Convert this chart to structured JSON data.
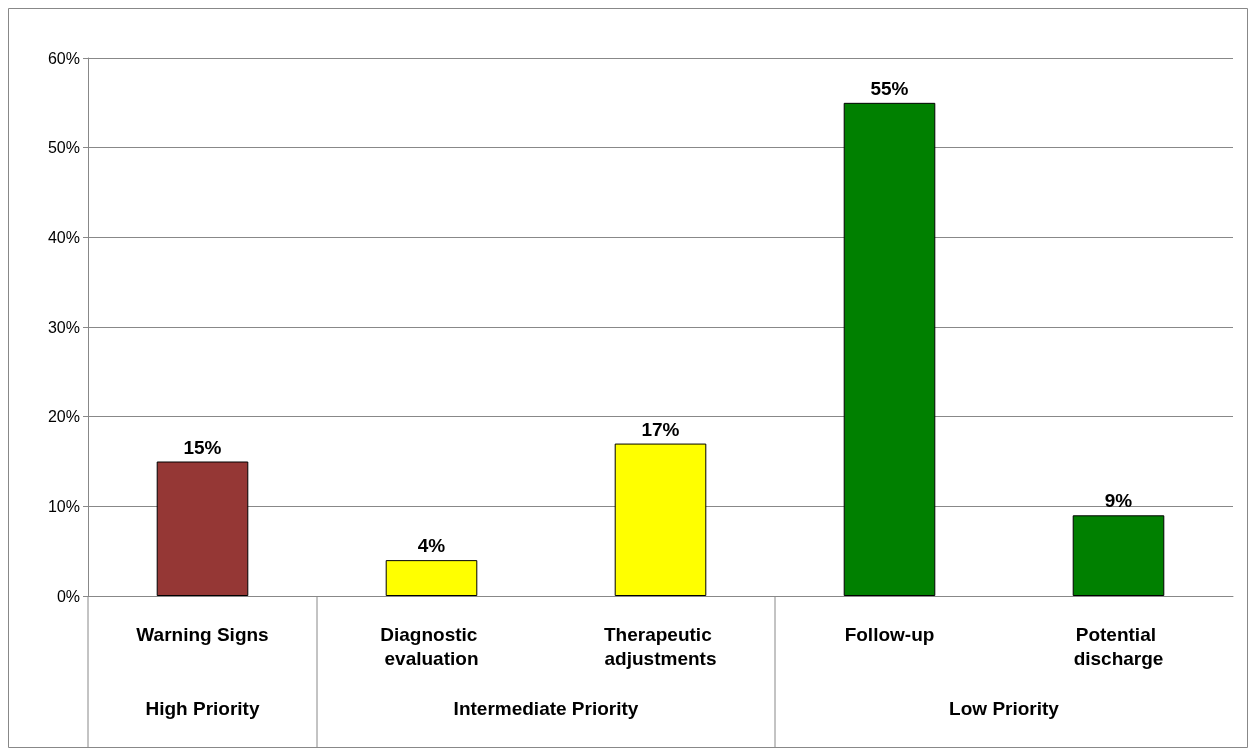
{
  "chart_data": {
    "type": "bar",
    "categories": [
      "Warning Signs",
      "Diagnostic evaluation",
      "Therapeutic adjustments",
      "Follow-up",
      "Potential discharge"
    ],
    "values": [
      15,
      4,
      17,
      55,
      9
    ],
    "colors": [
      "#953735",
      "#ffff00",
      "#ffff00",
      "#008000",
      "#008000"
    ],
    "value_labels": [
      "15%",
      "4%",
      "17%",
      "55%",
      "9%"
    ],
    "ylim": [
      0,
      60
    ],
    "yticks": [
      {
        "value": 0,
        "label": "0%"
      },
      {
        "value": 10,
        "label": "10%"
      },
      {
        "value": 20,
        "label": "20%"
      },
      {
        "value": 30,
        "label": "30%"
      },
      {
        "value": 40,
        "label": "40%"
      },
      {
        "value": 50,
        "label": "50%"
      },
      {
        "value": 60,
        "label": "60%"
      }
    ],
    "grid": "y",
    "annotations": [
      "High Priority",
      "Intermediate Priority",
      "Low Priority"
    ]
  }
}
